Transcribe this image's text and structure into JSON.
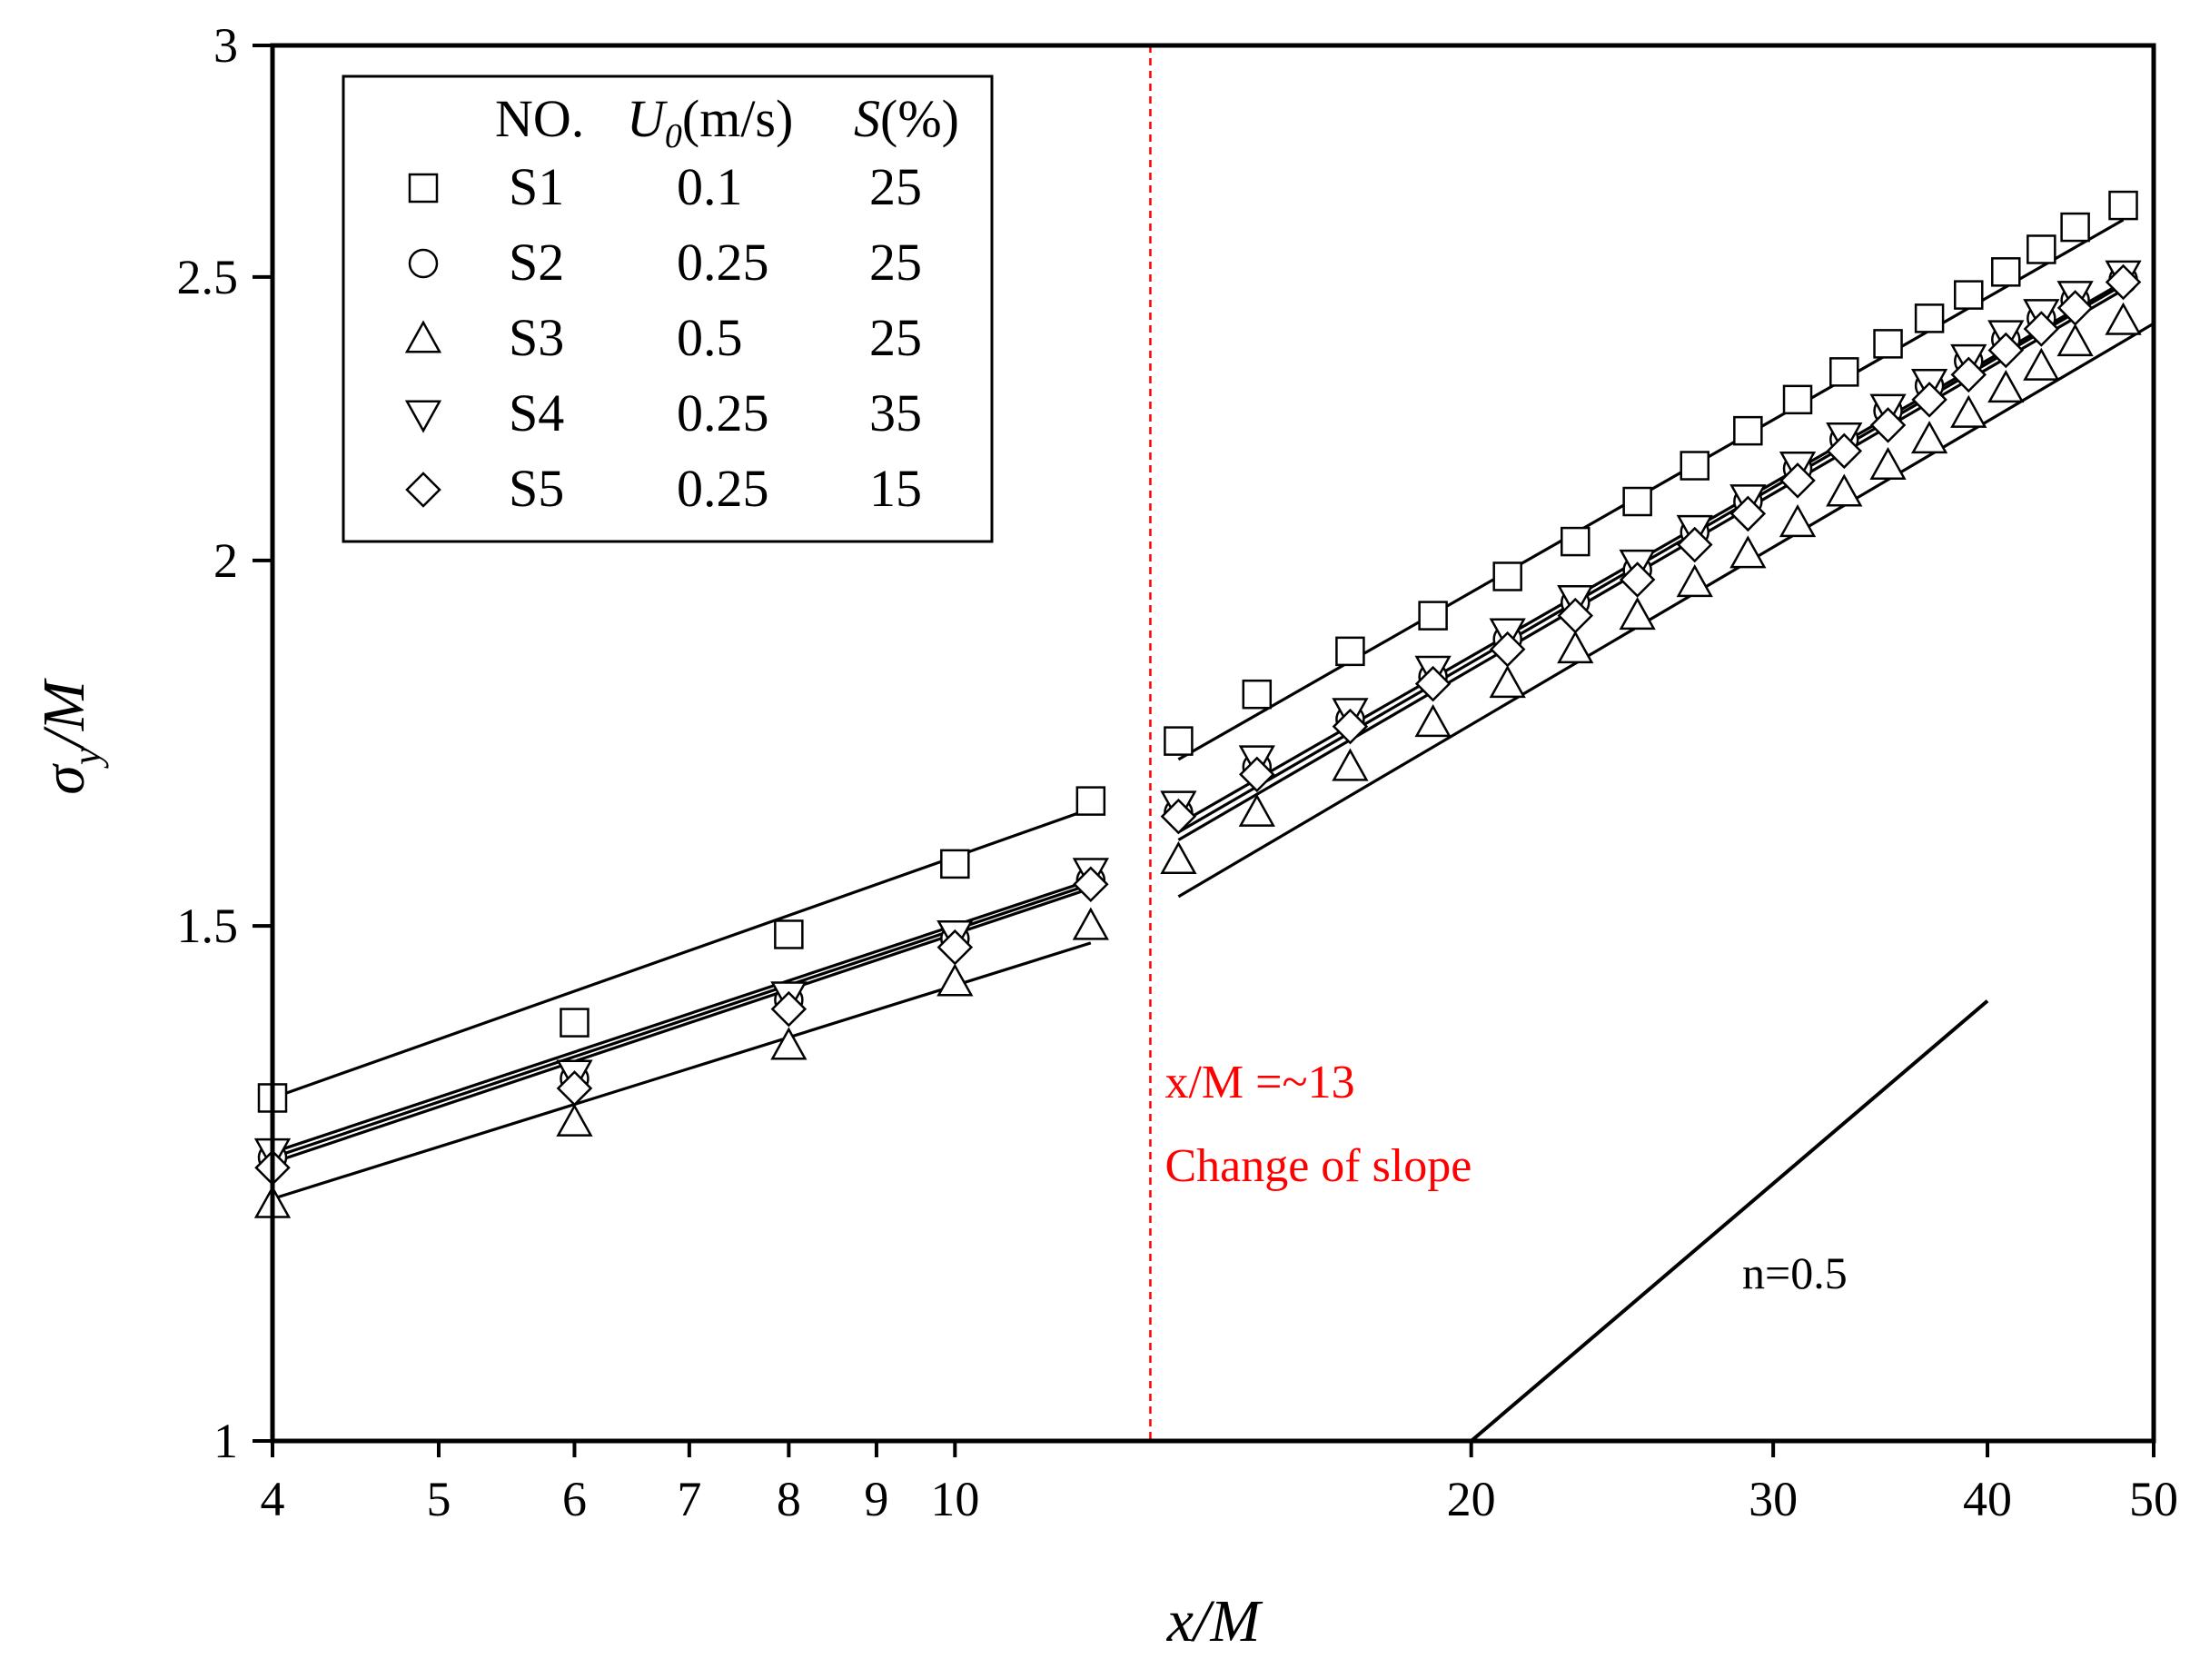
{
  "chart_data": {
    "type": "scatter",
    "xlabel": "x/M",
    "ylabel": "σy/M",
    "xscale": "log",
    "yscale": "log",
    "xlim": [
      4,
      50
    ],
    "ylim": [
      1,
      3
    ],
    "x_ticks": [
      4,
      5,
      6,
      7,
      8,
      9,
      10,
      20,
      30,
      40,
      50
    ],
    "x_tick_labels": [
      "4",
      "5",
      "6",
      "7",
      "8",
      "9",
      "10",
      "20",
      "30",
      "40",
      "50"
    ],
    "y_ticks": [
      1,
      1.5,
      2,
      2.5,
      3
    ],
    "y_tick_labels": [
      "1",
      "1.5",
      "2",
      "2.5",
      "3"
    ],
    "grid": false,
    "legend_position": "top-left",
    "legend_headers": [
      "NO.",
      "U0(m/s)",
      "S(%)"
    ],
    "series": [
      {
        "name": "S1",
        "u0": "0.1",
        "s": "25",
        "marker": "square",
        "near": {
          "x": [
            4,
            6,
            8,
            10,
            12
          ],
          "y": [
            1.31,
            1.39,
            1.49,
            1.575,
            1.655
          ]
        },
        "far": {
          "x": [
            13.5,
            15,
            17,
            19,
            21,
            23,
            25,
            27,
            29,
            31,
            33,
            35,
            37,
            39,
            41,
            43,
            45,
            48
          ],
          "y": [
            1.735,
            1.8,
            1.862,
            1.915,
            1.975,
            2.03,
            2.095,
            2.155,
            2.215,
            2.27,
            2.32,
            2.372,
            2.42,
            2.465,
            2.51,
            2.555,
            2.6,
            2.645
          ]
        },
        "fit_near": {
          "x": [
            4,
            12
          ],
          "y": [
            1.31,
            1.645
          ]
        },
        "fit_far": {
          "x": [
            13.5,
            48
          ],
          "y": [
            1.71,
            2.615
          ]
        }
      },
      {
        "name": "S2",
        "u0": "0.25",
        "s": "25",
        "marker": "circle",
        "near": {
          "x": [
            4,
            6,
            8,
            10,
            12
          ],
          "y": [
            1.25,
            1.33,
            1.415,
            1.485,
            1.555
          ]
        },
        "far": {
          "x": [
            13.5,
            15,
            17,
            19,
            21,
            23,
            25,
            27,
            29,
            31,
            33,
            35,
            37,
            39,
            41,
            43,
            45,
            48
          ],
          "y": [
            1.64,
            1.7,
            1.765,
            1.825,
            1.88,
            1.935,
            1.985,
            2.045,
            2.095,
            2.15,
            2.2,
            2.25,
            2.295,
            2.34,
            2.38,
            2.42,
            2.455,
            2.495
          ]
        },
        "fit_near": {
          "x": [
            4,
            12
          ],
          "y": [
            1.25,
            1.55
          ]
        },
        "fit_far": {
          "x": [
            13.5,
            48
          ],
          "y": [
            1.615,
            2.485
          ]
        }
      },
      {
        "name": "S3",
        "u0": "0.5",
        "s": "25",
        "marker": "triangle-up",
        "near": {
          "x": [
            4,
            6,
            8,
            10,
            12
          ],
          "y": [
            1.205,
            1.285,
            1.365,
            1.435,
            1.5
          ]
        },
        "far": {
          "x": [
            13.5,
            15,
            17,
            19,
            21,
            23,
            25,
            27,
            29,
            31,
            33,
            35,
            37,
            39,
            41,
            43,
            45,
            48
          ],
          "y": [
            1.58,
            1.64,
            1.7,
            1.76,
            1.815,
            1.865,
            1.915,
            1.965,
            2.01,
            2.06,
            2.11,
            2.155,
            2.2,
            2.245,
            2.29,
            2.33,
            2.375,
            2.415
          ]
        },
        "fit_near": {
          "x": [
            4,
            12
          ],
          "y": [
            1.21,
            1.48
          ]
        },
        "fit_far": {
          "x": [
            13.5,
            50
          ],
          "y": [
            1.535,
            2.41
          ]
        }
      },
      {
        "name": "S4",
        "u0": "0.25",
        "s": "35",
        "marker": "triangle-down",
        "near": {
          "x": [
            4,
            6,
            8,
            10,
            12
          ],
          "y": [
            1.255,
            1.335,
            1.42,
            1.49,
            1.565
          ]
        },
        "far": {
          "x": [
            13.5,
            15,
            17,
            19,
            21,
            23,
            25,
            27,
            29,
            31,
            33,
            35,
            37,
            39,
            41,
            43,
            45,
            48
          ],
          "y": [
            1.65,
            1.71,
            1.775,
            1.835,
            1.89,
            1.94,
            1.995,
            2.05,
            2.1,
            2.155,
            2.205,
            2.255,
            2.3,
            2.345,
            2.39,
            2.43,
            2.465,
            2.505
          ]
        },
        "fit_near": {
          "x": [
            4,
            12
          ],
          "y": [
            1.255,
            1.555
          ]
        },
        "fit_far": {
          "x": [
            13.5,
            48
          ],
          "y": [
            1.625,
            2.49
          ]
        }
      },
      {
        "name": "S5",
        "u0": "0.25",
        "s": "15",
        "marker": "diamond",
        "near": {
          "x": [
            4,
            6,
            8,
            10,
            12
          ],
          "y": [
            1.24,
            1.32,
            1.405,
            1.475,
            1.55
          ]
        },
        "far": {
          "x": [
            13.5,
            15,
            17,
            19,
            21,
            23,
            25,
            27,
            29,
            31,
            33,
            35,
            37,
            39,
            41,
            43,
            45,
            48
          ],
          "y": [
            1.635,
            1.69,
            1.755,
            1.815,
            1.865,
            1.915,
            1.97,
            2.025,
            2.075,
            2.13,
            2.18,
            2.225,
            2.27,
            2.315,
            2.36,
            2.4,
            2.44,
            2.49
          ]
        },
        "fit_near": {
          "x": [
            4,
            12
          ],
          "y": [
            1.245,
            1.545
          ]
        },
        "fit_far": {
          "x": [
            13.5,
            48
          ],
          "y": [
            1.605,
            2.475
          ]
        }
      }
    ],
    "reference_line": {
      "label": "n=0.5",
      "x": [
        20,
        40
      ],
      "y": [
        1.0,
        1.414
      ]
    },
    "vertical_marker": {
      "x": 13,
      "color": "#ff0000",
      "style": "dashed"
    },
    "annotations": {
      "line1": "x/M =~13",
      "line2": "Change of slope",
      "color": "#ff0000"
    }
  }
}
